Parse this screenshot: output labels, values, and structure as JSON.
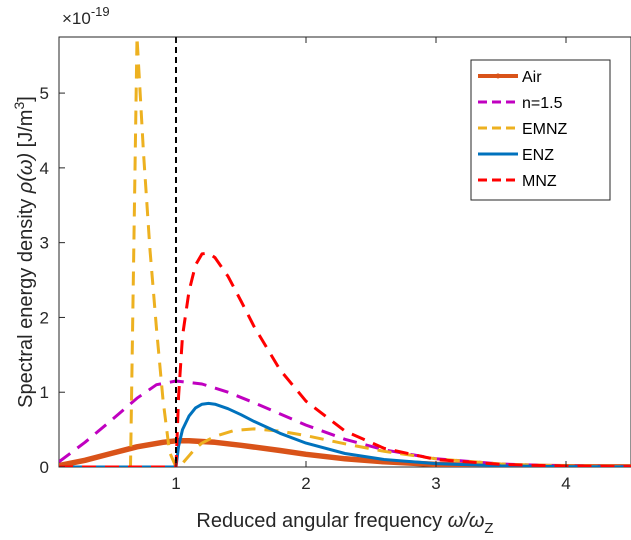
{
  "chart_data": {
    "type": "line",
    "title": "",
    "xlabel": "Reduced angular frequency ω/ω_Z",
    "xlabel_parts": {
      "main": "Reduced angular frequency ",
      "sym": "ω/ω",
      "sub": "Z"
    },
    "ylabel": "Spectral energy density ρ(ω) [J/m³]",
    "ylabel_parts": {
      "pre": "Spectral energy density ",
      "sym": "ρ(ω)",
      "post": " [J/m",
      "sup": "3",
      "close": "]"
    },
    "exponent_label": {
      "base": "×10",
      "exp": "-19"
    },
    "xlim": [
      0.1,
      4.5
    ],
    "ylim": [
      0,
      5.75
    ],
    "x_ticks": [
      1,
      2,
      3,
      4
    ],
    "x_tick_labels": [
      "1",
      "2",
      "3",
      "4"
    ],
    "y_ticks": [
      0,
      1,
      2,
      3,
      4,
      5
    ],
    "y_tick_labels": [
      "0",
      "1",
      "2",
      "3",
      "4",
      "5"
    ],
    "grid": false,
    "legend_position": "top-right",
    "vertical_line": {
      "x": 1,
      "color": "#000000",
      "style": "dashed"
    },
    "series": [
      {
        "name": "Air",
        "color": "#D95319",
        "style": "solid",
        "width": "thick",
        "x": [
          0.1,
          0.3,
          0.5,
          0.7,
          0.9,
          1.0,
          1.1,
          1.3,
          1.5,
          1.8,
          2.0,
          2.3,
          2.6,
          3.0,
          3.5,
          4.0,
          4.5
        ],
        "y": [
          0.02,
          0.09,
          0.18,
          0.27,
          0.33,
          0.35,
          0.35,
          0.33,
          0.29,
          0.22,
          0.17,
          0.11,
          0.07,
          0.035,
          0.012,
          0.004,
          0.001
        ]
      },
      {
        "name": "n=1.5",
        "color": "#C000C0",
        "style": "dashed",
        "width": "normal",
        "x": [
          0.1,
          0.3,
          0.5,
          0.7,
          0.85,
          1.0,
          1.2,
          1.4,
          1.6,
          1.8,
          2.0,
          2.3,
          2.6,
          3.0,
          3.5,
          4.0,
          4.5
        ],
        "y": [
          0.07,
          0.33,
          0.62,
          0.92,
          1.1,
          1.15,
          1.11,
          1.0,
          0.86,
          0.71,
          0.56,
          0.37,
          0.23,
          0.11,
          0.04,
          0.012,
          0.004
        ]
      },
      {
        "name": "EMNZ",
        "color": "#EDB120",
        "style": "dashed",
        "width": "normal",
        "x": [
          0.1,
          0.5,
          0.65,
          0.7,
          0.75,
          0.8,
          0.85,
          0.9,
          0.95,
          1.0,
          1.05,
          1.1,
          1.15,
          1.2,
          1.3,
          1.45,
          1.6,
          1.8,
          2.0,
          2.3,
          2.6,
          3.0,
          3.5,
          4.0,
          4.5
        ],
        "y": [
          0,
          0,
          0,
          5.75,
          4.2,
          2.9,
          1.85,
          0.9,
          0.2,
          0,
          0.05,
          0.15,
          0.25,
          0.32,
          0.41,
          0.49,
          0.51,
          0.48,
          0.42,
          0.31,
          0.21,
          0.11,
          0.04,
          0.012,
          0.004
        ]
      },
      {
        "name": "ENZ",
        "color": "#0072BD",
        "style": "solid",
        "width": "normal",
        "x": [
          0.1,
          0.5,
          1.0,
          1.02,
          1.05,
          1.1,
          1.15,
          1.2,
          1.25,
          1.3,
          1.4,
          1.5,
          1.6,
          1.8,
          2.0,
          2.3,
          2.6,
          3.0,
          3.5,
          4.0,
          4.5
        ],
        "y": [
          0,
          0,
          0,
          0.28,
          0.5,
          0.68,
          0.79,
          0.84,
          0.85,
          0.84,
          0.78,
          0.7,
          0.61,
          0.45,
          0.32,
          0.18,
          0.1,
          0.045,
          0.015,
          0.005,
          0.002
        ]
      },
      {
        "name": "MNZ",
        "color": "#FF0000",
        "style": "dashed",
        "width": "normal",
        "x": [
          0.1,
          0.5,
          1.0,
          1.02,
          1.05,
          1.1,
          1.15,
          1.2,
          1.25,
          1.3,
          1.4,
          1.5,
          1.6,
          1.8,
          2.0,
          2.3,
          2.6,
          3.0,
          3.5,
          4.0,
          4.5
        ],
        "y": [
          0,
          0,
          0,
          0.95,
          1.75,
          2.35,
          2.7,
          2.85,
          2.86,
          2.8,
          2.55,
          2.22,
          1.88,
          1.3,
          0.88,
          0.48,
          0.25,
          0.1,
          0.035,
          0.011,
          0.004
        ]
      }
    ]
  }
}
